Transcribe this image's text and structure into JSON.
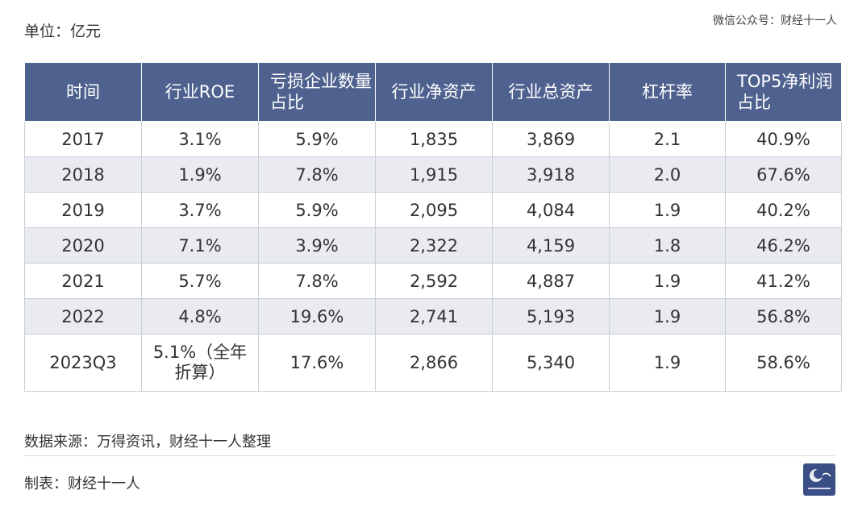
{
  "unit_label": "单位：亿元",
  "watermark": "微信公众号：财经十一人",
  "table": {
    "headers": [
      "时间",
      "行业ROE",
      "亏损企业数量占比",
      "行业净资产",
      "行业总资产",
      "杠杆率",
      "TOP5净利润占比"
    ],
    "rows": [
      [
        "2017",
        "3.1%",
        "5.9%",
        "1,835",
        "3,869",
        "2.1",
        "40.9%"
      ],
      [
        "2018",
        "1.9%",
        "7.8%",
        "1,915",
        "3,918",
        "2.0",
        "67.6%"
      ],
      [
        "2019",
        "3.7%",
        "5.9%",
        "2,095",
        "4,084",
        "1.9",
        "40.2%"
      ],
      [
        "2020",
        "7.1%",
        "3.9%",
        "2,322",
        "4,159",
        "1.8",
        "46.2%"
      ],
      [
        "2021",
        "5.7%",
        "7.8%",
        "2,592",
        "4,887",
        "1.9",
        "41.2%"
      ],
      [
        "2022",
        "4.8%",
        "19.6%",
        "2,741",
        "5,193",
        "1.9",
        "56.8%"
      ],
      [
        "2023Q3",
        "5.1%（全年折算）",
        "17.6%",
        "2,866",
        "5,340",
        "1.9",
        "58.6%"
      ]
    ]
  },
  "source_note": "数据来源：万得资讯，财经十一人整理",
  "maker_note": "制表：财经十一人",
  "colors": {
    "header_bg": "#4f628f",
    "stripe_bg": "#e9ebf1",
    "logo_bg": "#3a4f86"
  }
}
